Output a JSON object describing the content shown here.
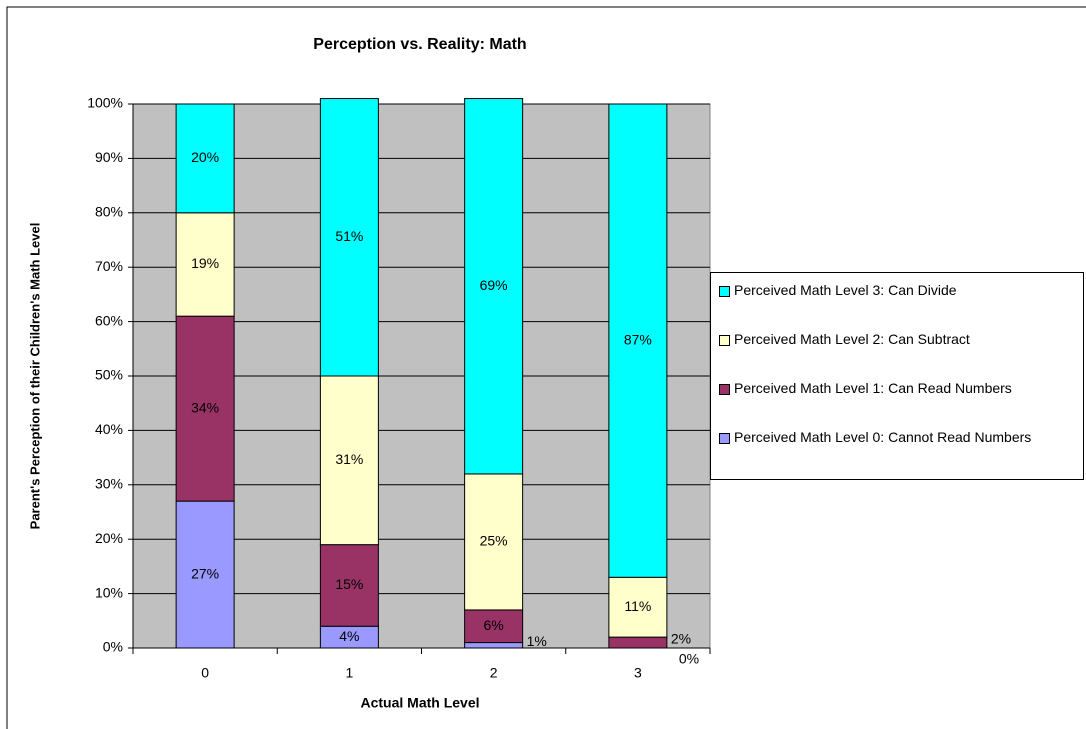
{
  "chart_data": {
    "type": "stacked_bar",
    "title": "Perception vs. Reality: Math",
    "x_label": "Actual Math Level",
    "y_label": "Parent's Perception of their Children's Math Level",
    "categories": [
      "0",
      "1",
      "2",
      "3"
    ],
    "series": [
      {
        "name": "Perceived Math Level 0: Cannot Read Numbers",
        "color": "#9999ff",
        "values": [
          27,
          4,
          1,
          0
        ],
        "value_labels": [
          "27%",
          "4%",
          "1%",
          "0%"
        ]
      },
      {
        "name": "Perceived Math Level 1: Can Read Numbers",
        "color": "#993366",
        "values": [
          34,
          15,
          6,
          2
        ],
        "value_labels": [
          "34%",
          "15%",
          "6%",
          "2%"
        ]
      },
      {
        "name": "Perceived Math Level 2: Can Subtract",
        "color": "#ffffcc",
        "values": [
          19,
          31,
          25,
          11
        ],
        "value_labels": [
          "19%",
          "31%",
          "25%",
          "11%"
        ]
      },
      {
        "name": "Perceived Math Level 3: Can Divide",
        "color": "#00ffff",
        "values": [
          20,
          51,
          69,
          87
        ],
        "value_labels": [
          "20%",
          "51%",
          "69%",
          "87%"
        ]
      }
    ],
    "ylim": [
      0,
      100
    ],
    "yticks": [
      {
        "value": 0,
        "label": "0%"
      },
      {
        "value": 10,
        "label": "10%"
      },
      {
        "value": 20,
        "label": "20%"
      },
      {
        "value": 30,
        "label": "30%"
      },
      {
        "value": 40,
        "label": "40%"
      },
      {
        "value": 50,
        "label": "50%"
      },
      {
        "value": 60,
        "label": "60%"
      },
      {
        "value": 70,
        "label": "70%"
      },
      {
        "value": 80,
        "label": "80%"
      },
      {
        "value": 90,
        "label": "90%"
      },
      {
        "value": 100,
        "label": "100%"
      }
    ],
    "grid": true,
    "legend": "right"
  }
}
